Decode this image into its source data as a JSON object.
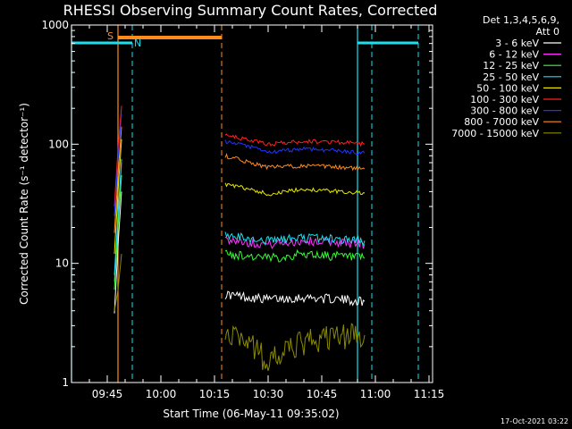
{
  "chart_data": {
    "type": "line",
    "title": "RHESSI Observing Summary Count Rates, Corrected",
    "xlabel": "Start Time (06-May-11 09:35:02)",
    "ylabel": "Corrected Count Rate (s⁻¹ detector⁻¹)",
    "yscale": "log",
    "ylim": [
      1,
      1000
    ],
    "yticks": [
      1,
      10,
      100,
      1000
    ],
    "ytick_labels": [
      "1",
      "10",
      "100",
      "1000"
    ],
    "xlim": [
      "09:35",
      "11:16"
    ],
    "xticks": [
      "09:45",
      "10:00",
      "10:15",
      "10:30",
      "10:45",
      "11:00",
      "11:15"
    ],
    "legend": {
      "position": "top-right",
      "header": [
        "Det 1,3,4,5,6,9,",
        "Att 0"
      ]
    },
    "colors": {
      "background": "#000000",
      "axes": "#ffffff",
      "saa_bar": "#ff8c1a",
      "night_bar": "#19e0f0"
    },
    "annotations": {
      "saa_label": "S",
      "night_label": "N",
      "saa_bar": {
        "start": "09:48",
        "end": "10:17"
      },
      "night_bars": [
        {
          "start": "09:35",
          "end": "09:52"
        },
        {
          "start": "10:55",
          "end": "11:12"
        }
      ],
      "solid_vlines": [
        {
          "time": "09:48",
          "color": "#ff8c1a"
        },
        {
          "time": "10:55",
          "color": "#19e0f0"
        },
        {
          "time": "09:35",
          "color": "#19e0f0"
        }
      ],
      "dashed_vlines": [
        {
          "time": "09:52",
          "color": "#19e0f0"
        },
        {
          "time": "10:17",
          "color": "#ff8c1a"
        },
        {
          "time": "10:59",
          "color": "#19e0f0"
        },
        {
          "time": "11:12",
          "color": "#19e0f0"
        }
      ]
    },
    "series": [
      {
        "name": "3 - 6 keV",
        "color": "#ffffff",
        "segments": [
          {
            "t": [
              "09:47",
              "09:48",
              "09:49"
            ],
            "v": [
              3.8,
              14,
              40
            ]
          },
          {
            "t": [
              "10:18",
              "10:25",
              "10:30",
              "10:40",
              "10:50",
              "10:57"
            ],
            "v": [
              5.5,
              5.2,
              5.0,
              5.2,
              5.0,
              4.8
            ]
          }
        ]
      },
      {
        "name": "6 - 12 keV",
        "color": "#ff33ff",
        "segments": [
          {
            "t": [
              "09:47",
              "09:48",
              "09:49"
            ],
            "v": [
              7,
              24,
              70
            ]
          },
          {
            "t": [
              "10:18",
              "10:25",
              "10:30",
              "10:40",
              "10:50",
              "10:57"
            ],
            "v": [
              16,
              15,
              14.5,
              15.5,
              15,
              14.5
            ]
          }
        ]
      },
      {
        "name": "12 - 25 keV",
        "color": "#33ff33",
        "segments": [
          {
            "t": [
              "09:47",
              "09:48",
              "09:49"
            ],
            "v": [
              6,
              20,
              55
            ]
          },
          {
            "t": [
              "10:18",
              "10:25",
              "10:30",
              "10:40",
              "10:50",
              "10:57"
            ],
            "v": [
              12,
              11.5,
              11,
              12,
              11.5,
              11
            ]
          }
        ]
      },
      {
        "name": "25 - 50 keV",
        "color": "#19e0f0",
        "segments": [
          {
            "t": [
              "09:47",
              "09:48",
              "09:49"
            ],
            "v": [
              8,
              25,
              75
            ]
          },
          {
            "t": [
              "10:18",
              "10:25",
              "10:30",
              "10:40",
              "10:50",
              "10:57"
            ],
            "v": [
              17,
              16,
              15.5,
              16.5,
              16,
              15.5
            ]
          }
        ]
      },
      {
        "name": "50 - 100 keV",
        "color": "#e6e600",
        "segments": [
          {
            "t": [
              "09:47",
              "09:48",
              "09:49"
            ],
            "v": [
              12,
              40,
              110
            ]
          },
          {
            "t": [
              "10:18",
              "10:25",
              "10:30",
              "10:40",
              "10:50",
              "10:57"
            ],
            "v": [
              46,
              42,
              38,
              42,
              40,
              39
            ]
          }
        ]
      },
      {
        "name": "100 - 300 keV",
        "color": "#ff2020",
        "segments": [
          {
            "t": [
              "09:47",
              "09:48",
              "09:49"
            ],
            "v": [
              30,
              90,
              210
            ]
          },
          {
            "t": [
              "10:18",
              "10:25",
              "10:30",
              "10:40",
              "10:50",
              "10:57"
            ],
            "v": [
              118,
              108,
              100,
              106,
              104,
              100
            ]
          }
        ]
      },
      {
        "name": "300 - 800 keV",
        "color": "#2233ff",
        "segments": [
          {
            "t": [
              "09:47",
              "09:48",
              "09:49"
            ],
            "v": [
              25,
              75,
              180
            ]
          },
          {
            "t": [
              "10:18",
              "10:25",
              "10:30",
              "10:40",
              "10:50",
              "10:57"
            ],
            "v": [
              105,
              95,
              85,
              92,
              88,
              84
            ]
          }
        ]
      },
      {
        "name": "800 - 7000 keV",
        "color": "#ff8c1a",
        "segments": [
          {
            "t": [
              "09:47",
              "09:48",
              "09:49"
            ],
            "v": [
              18,
              55,
              140
            ]
          },
          {
            "t": [
              "10:18",
              "10:25",
              "10:30",
              "10:40",
              "10:50",
              "10:57"
            ],
            "v": [
              80,
              70,
              64,
              66,
              64,
              62
            ]
          }
        ]
      },
      {
        "name": "7000 - 15000 keV",
        "color": "#8b8b00",
        "segments": [
          {
            "t": [
              "09:47",
              "09:48",
              "09:49"
            ],
            "v": [
              4,
              6,
              12
            ]
          },
          {
            "t": [
              "10:18",
              "10:25",
              "10:30",
              "10:40",
              "10:50",
              "10:57"
            ],
            "v": [
              3.0,
              2.2,
              1.5,
              2.2,
              2.5,
              2.5
            ]
          }
        ]
      }
    ]
  },
  "footer": {
    "timestamp": "17-Oct-2021 03:22"
  }
}
